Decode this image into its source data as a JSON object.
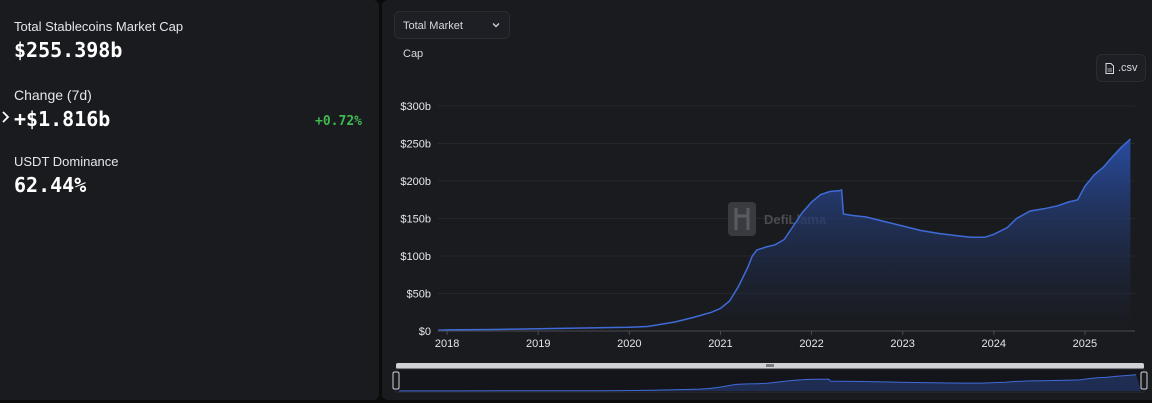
{
  "summary": {
    "market_cap_label": "Total Stablecoins Market Cap",
    "market_cap_value": "$255.398b",
    "change_label": "Change (7d)",
    "change_value": "+$1.816b",
    "change_pct": "+0.72%",
    "dominance_label": "USDT Dominance",
    "dominance_value": "62.44%"
  },
  "controls": {
    "metric_select": "Total Market Cap",
    "csv_label": ".csv"
  },
  "watermark": "DefiLlama",
  "colors": {
    "line": "#3f6bd8",
    "positive": "#3fb950",
    "panel": "#1a1b1f"
  },
  "chart_data": {
    "type": "area",
    "xlabel": "",
    "ylabel": "",
    "ylim": [
      0,
      300
    ],
    "xlim": [
      2017.9,
      2025.55
    ],
    "grid": "horizontal",
    "y_ticks": [
      "$0",
      "$50b",
      "$100b",
      "$150b",
      "$200b",
      "$250b",
      "$300b"
    ],
    "x_ticks": [
      "2018",
      "2019",
      "2020",
      "2021",
      "2022",
      "2023",
      "2024",
      "2025"
    ],
    "series": [
      {
        "x": [
          2017.9,
          2018.0,
          2018.5,
          2019.0,
          2019.5,
          2020.0,
          2020.2,
          2020.3,
          2020.5,
          2020.7,
          2020.9,
          2021.0,
          2021.1,
          2021.2,
          2021.3,
          2021.35,
          2021.4,
          2021.5,
          2021.6,
          2021.7,
          2021.8,
          2021.9,
          2022.0,
          2022.1,
          2022.2,
          2022.3,
          2022.33,
          2022.35,
          2022.45,
          2022.6,
          2022.8,
          2023.0,
          2023.2,
          2023.4,
          2023.6,
          2023.75,
          2023.9,
          2024.0,
          2024.15,
          2024.25,
          2024.4,
          2024.55,
          2024.7,
          2024.82,
          2024.92,
          2025.0,
          2025.1,
          2025.2,
          2025.3,
          2025.4,
          2025.5
        ],
        "y": [
          1,
          1.5,
          2,
          3,
          4,
          5,
          6,
          8,
          12,
          18,
          25,
          30,
          40,
          60,
          85,
          100,
          108,
          112,
          115,
          122,
          140,
          158,
          172,
          182,
          186,
          187,
          188,
          156,
          154,
          152,
          146,
          140,
          134,
          130,
          127,
          125,
          125,
          129,
          138,
          150,
          160,
          163,
          167,
          172,
          175,
          193,
          208,
          218,
          232,
          245,
          256
        ]
      }
    ]
  }
}
